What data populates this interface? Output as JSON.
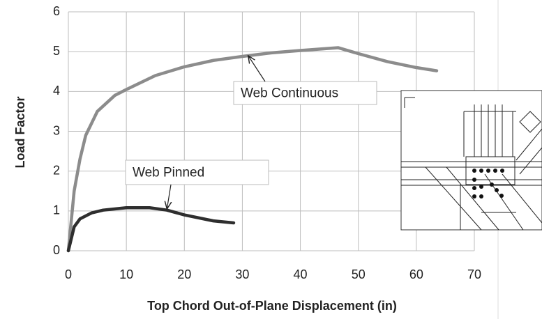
{
  "chart_data": {
    "type": "line",
    "xlabel": "Top Chord Out-of-Plane Displacement (in)",
    "ylabel": "Load Factor",
    "xlim": [
      0,
      70
    ],
    "xticks": [
      0,
      10,
      20,
      30,
      40,
      50,
      60,
      70
    ],
    "ylim": [
      0,
      6
    ],
    "yticks": [
      0,
      1,
      2,
      3,
      4,
      5,
      6
    ],
    "grid": true,
    "series": [
      {
        "name": "Web Continuous",
        "color": "#8c8c8c",
        "x": [
          0,
          1,
          2,
          3,
          5,
          8,
          10,
          15,
          20,
          25,
          30,
          35,
          40,
          46.5,
          50,
          55,
          60,
          63.5
        ],
        "values": [
          0,
          1.5,
          2.3,
          2.9,
          3.5,
          3.9,
          4.05,
          4.4,
          4.62,
          4.78,
          4.88,
          4.97,
          5.03,
          5.1,
          4.95,
          4.75,
          4.6,
          4.52
        ]
      },
      {
        "name": "Web Pinned",
        "color": "#2e2e2e",
        "x": [
          0,
          1,
          2,
          4,
          6,
          10,
          14,
          17,
          20,
          25,
          28.5
        ],
        "values": [
          0,
          0.6,
          0.8,
          0.95,
          1.02,
          1.08,
          1.08,
          1.02,
          0.9,
          0.75,
          0.7
        ]
      }
    ],
    "annotations": [
      {
        "text": "Web Continuous"
      },
      {
        "text": "Web Pinned"
      }
    ]
  }
}
